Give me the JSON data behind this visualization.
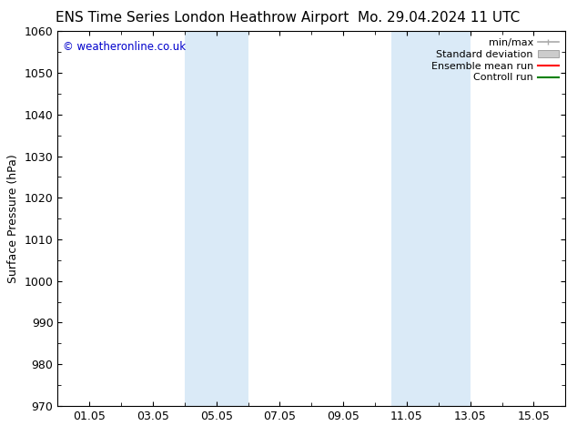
{
  "title_left": "ENS Time Series London Heathrow Airport",
  "title_right": "Mo. 29.04.2024 11 UTC",
  "ylabel": "Surface Pressure (hPa)",
  "ylim": [
    970,
    1060
  ],
  "yticks": [
    970,
    980,
    990,
    1000,
    1010,
    1020,
    1030,
    1040,
    1050,
    1060
  ],
  "xlim": [
    19112.0,
    19128.0
  ],
  "xtick_labels": [
    "01.05",
    "03.05",
    "05.05",
    "07.05",
    "09.05",
    "11.05",
    "13.05",
    "15.05"
  ],
  "xtick_positions": [
    19113,
    19115,
    19117,
    19119,
    19121,
    19123,
    19125,
    19127
  ],
  "shaded_bands": [
    {
      "xmin": 19116.0,
      "xmax": 19118.0,
      "color": "#daeaf7"
    },
    {
      "xmin": 19122.5,
      "xmax": 19125.0,
      "color": "#daeaf7"
    }
  ],
  "copyright_text": "© weatheronline.co.uk",
  "copyright_color": "#0000cc",
  "background_color": "#ffffff",
  "plot_bg_color": "#ffffff",
  "legend_entries": [
    {
      "label": "min/max",
      "color": "#aaaaaa",
      "style": "minmax"
    },
    {
      "label": "Standard deviation",
      "color": "#cccccc",
      "style": "std"
    },
    {
      "label": "Ensemble mean run",
      "color": "#ff0000",
      "style": "line"
    },
    {
      "label": "Controll run",
      "color": "#008000",
      "style": "line"
    }
  ],
  "spine_color": "#000000",
  "tick_color": "#000000",
  "title_fontsize": 11,
  "axis_label_fontsize": 9,
  "tick_fontsize": 9,
  "legend_fontsize": 8
}
